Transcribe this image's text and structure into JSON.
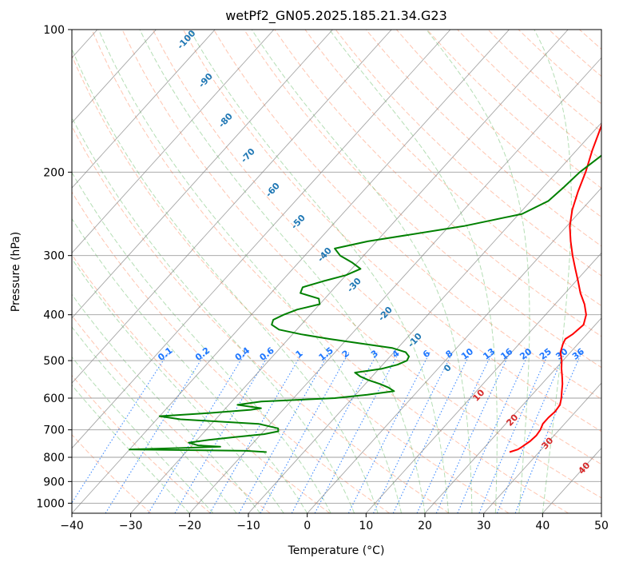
{
  "chart_data": {
    "type": "line",
    "title": "wetPf2_GN05.2025.185.21.34.G23",
    "xlabel": "Temperature (°C)",
    "ylabel": "Pressure (hPa)",
    "xlim": [
      -40,
      50
    ],
    "ylim": [
      1050,
      100
    ],
    "y_scale": "log",
    "grid": true,
    "x_ticks": [
      "−40",
      "−30",
      "−20",
      "−10",
      "0",
      "10",
      "20",
      "30",
      "40",
      "50"
    ],
    "y_ticks": [
      "100",
      "200",
      "300",
      "400",
      "500",
      "600",
      "700",
      "800",
      "900",
      "1000"
    ],
    "y_tick_values": [
      100,
      200,
      300,
      400,
      500,
      600,
      700,
      800,
      900,
      1000
    ],
    "isotherm_labels": [
      "-100",
      "-90",
      "-80",
      "-70",
      "-60",
      "-50",
      "-40",
      "-30",
      "-20",
      "-10",
      "0",
      "10",
      "20",
      "30",
      "40"
    ],
    "mixing_ratio_labels": [
      "0.1",
      "0.2",
      "0.4",
      "0.6",
      "1",
      "1.5",
      "2",
      "3",
      "4",
      "6",
      "8",
      "10",
      "13",
      "16",
      "20",
      "25",
      "30",
      "36"
    ],
    "colors": {
      "temperature": "#ff0000",
      "dewpoint": "#008000",
      "dry_adiabats": "#ff7f50",
      "moist_adiabats": "#2ca02c",
      "mixing_ratio": "#1f77ff",
      "isotherms": "#808080",
      "cold_label": "#1f77b4",
      "warm_label": "#d62728"
    },
    "series": [
      {
        "kind": "temperature",
        "pressure": [
          780,
          770,
          760,
          740,
          720,
          700,
          680,
          660,
          640,
          620,
          600,
          580,
          560,
          540,
          520,
          500,
          480,
          460,
          450,
          440,
          420,
          400,
          380,
          360,
          340,
          320,
          300,
          280,
          260,
          240,
          220,
          200,
          180,
          160,
          150,
          140,
          130,
          120,
          110,
          100
        ],
        "temperature": [
          25.0,
          26.0,
          26.3,
          26.8,
          27.0,
          26.8,
          26.3,
          26.3,
          26.5,
          26.3,
          25.5,
          24.5,
          23.5,
          22.3,
          21.0,
          19.8,
          18.3,
          17.4,
          17.1,
          17.6,
          18.0,
          16.9,
          15.0,
          12.6,
          10.4,
          8.0,
          5.5,
          3.0,
          0.5,
          -1.6,
          -3.4,
          -5.1,
          -7.3,
          -9.5,
          -11.1,
          -13.0,
          -15.0,
          -17.0,
          -18.0,
          -17.0
        ]
      },
      {
        "kind": "dewpoint",
        "pressure": [
          780,
          775,
          770,
          765,
          760,
          755,
          745,
          735,
          725,
          715,
          705,
          695,
          680,
          665,
          655,
          645,
          635,
          630,
          620,
          610,
          600,
          590,
          580,
          570,
          560,
          550,
          540,
          530,
          520,
          510,
          500,
          490,
          480,
          470,
          460,
          450,
          440,
          430,
          420,
          410,
          400,
          390,
          380,
          370,
          360,
          350,
          340,
          330,
          320,
          310,
          300,
          290,
          280,
          260,
          245,
          230,
          215,
          200,
          185,
          170,
          160,
          150,
          140,
          130,
          120,
          110,
          100
        ],
        "temperature": [
          -16.3,
          -20.0,
          -40.0,
          -32.0,
          -25.0,
          -29.0,
          -31.0,
          -28.0,
          -24.0,
          -19.5,
          -17.5,
          -18.0,
          -22.0,
          -36.0,
          -40.0,
          -32.0,
          -25.5,
          -24.0,
          -28.5,
          -25.0,
          -13.0,
          -8.0,
          -4.0,
          -5.5,
          -7.5,
          -10.0,
          -12.0,
          -13.5,
          -9.5,
          -7.5,
          -6.5,
          -6.8,
          -8.0,
          -11.0,
          -17.0,
          -23.0,
          -28.5,
          -33.0,
          -35.0,
          -35.5,
          -34.5,
          -33.0,
          -30.0,
          -31.0,
          -35.0,
          -35.5,
          -33.0,
          -30.0,
          -28.5,
          -31.0,
          -34.0,
          -36.0,
          -31.5,
          -17.5,
          -9.5,
          -7.0,
          -6.5,
          -6.1,
          -5.0,
          -4.1,
          -4.4,
          -3.6,
          -2.6,
          -1.2,
          -0.3,
          0.9,
          2.5
        ]
      }
    ]
  }
}
